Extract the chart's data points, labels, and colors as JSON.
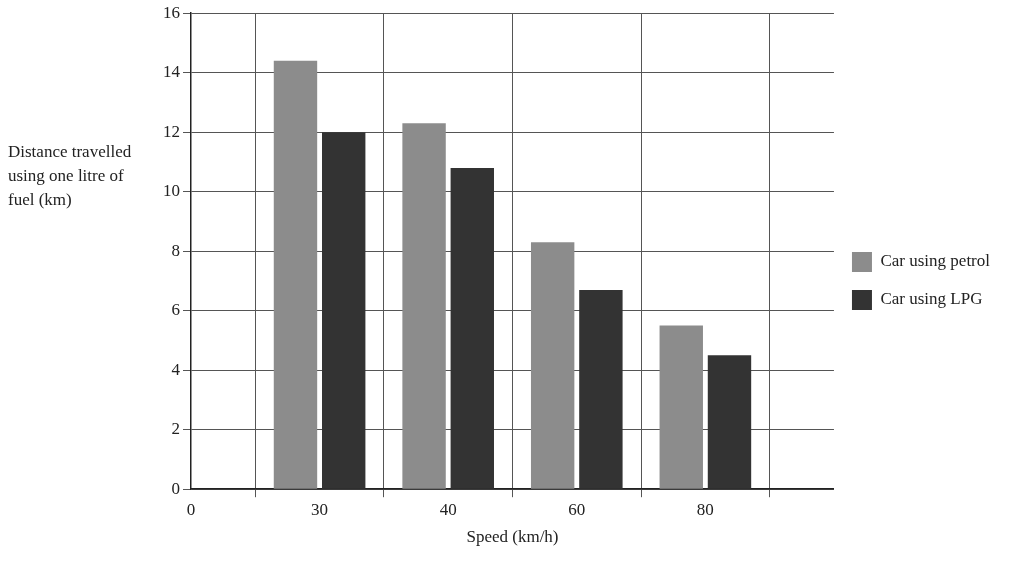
{
  "chart_data": {
    "type": "bar",
    "xlabel": "Speed (km/h)",
    "ylabel": "Distance travelled using one litre of fuel (km)",
    "categories": [
      "0",
      "30",
      "40",
      "60",
      "80",
      null
    ],
    "series": [
      {
        "name": "Car using petrol",
        "color": "#8c8c8c",
        "values": [
          null,
          14.4,
          12.3,
          8.3,
          5.5,
          null
        ]
      },
      {
        "name": "Car using LPG",
        "color": "#333333",
        "values": [
          null,
          12,
          10.8,
          6.7,
          4.5,
          null
        ]
      }
    ],
    "ylim": [
      0,
      16
    ],
    "yticks": [
      0,
      2,
      4,
      6,
      8,
      10,
      12,
      14,
      16
    ],
    "grid": true,
    "legend": "right"
  }
}
